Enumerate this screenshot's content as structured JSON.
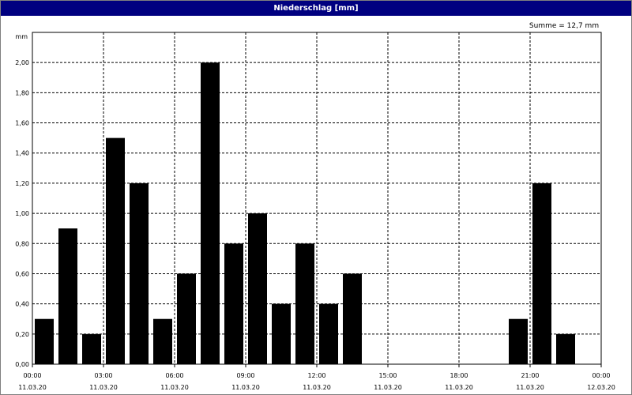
{
  "window": {
    "title": "Niederschlag [mm]"
  },
  "chart_data": {
    "type": "bar",
    "title": "Niederschlag [mm]",
    "ylabel": "mm",
    "annotation": "Summe = 12,7 mm",
    "ylim": [
      0,
      2.2
    ],
    "xlim_hours": [
      0,
      24
    ],
    "grid": true,
    "bar_color": "#000000",
    "yticks": [
      "0,00",
      "0,20",
      "0,40",
      "0,60",
      "0,80",
      "1,00",
      "1,20",
      "1,40",
      "1,60",
      "1,80",
      "2,00"
    ],
    "xticks": [
      {
        "time": "00:00",
        "date": "11.03.20"
      },
      {
        "time": "03:00",
        "date": "11.03.20"
      },
      {
        "time": "06:00",
        "date": "11.03.20"
      },
      {
        "time": "09:00",
        "date": "11.03.20"
      },
      {
        "time": "12:00",
        "date": "11.03.20"
      },
      {
        "time": "15:00",
        "date": "11.03.20"
      },
      {
        "time": "18:00",
        "date": "11.03.20"
      },
      {
        "time": "21:00",
        "date": "11.03.20"
      },
      {
        "time": "00:00",
        "date": "12.03.20"
      }
    ],
    "categories": [
      "00:00",
      "01:00",
      "02:00",
      "03:00",
      "04:00",
      "05:00",
      "06:00",
      "07:00",
      "08:00",
      "09:00",
      "10:00",
      "11:00",
      "12:00",
      "13:00",
      "14:00",
      "15:00",
      "16:00",
      "17:00",
      "18:00",
      "19:00",
      "20:00",
      "21:00",
      "22:00",
      "23:00"
    ],
    "values": [
      0.3,
      0.9,
      0.2,
      1.5,
      1.2,
      0.3,
      0.6,
      2.0,
      0.8,
      1.0,
      0.4,
      0.8,
      0.4,
      0.6,
      0,
      0,
      0,
      0,
      0,
      0,
      0.3,
      1.2,
      0.2,
      0
    ]
  }
}
